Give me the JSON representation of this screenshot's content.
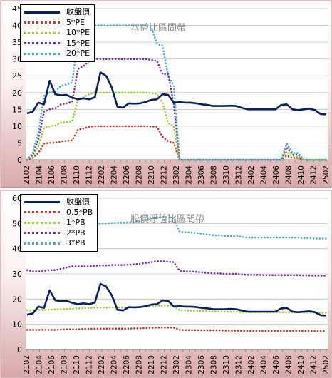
{
  "chart_data": [
    {
      "type": "line",
      "title": "本益比區間帶",
      "ylim": [
        0,
        45
      ],
      "yticks": [
        0,
        5,
        10,
        15,
        20,
        25,
        30,
        35,
        40,
        45
      ],
      "xtick_labels": [
        "2102",
        "2104",
        "2106",
        "2108",
        "2110",
        "2112",
        "2202",
        "2204",
        "2206",
        "2208",
        "2210",
        "2212",
        "2302",
        "2304",
        "2306",
        "2308",
        "2310",
        "2312",
        "2402",
        "2404",
        "2406",
        "2408",
        "2410",
        "2412",
        "2502"
      ],
      "grid": true,
      "legend_position": "top-left",
      "series": [
        {
          "name": "收盤價",
          "color": "#0a1f5c",
          "style": "solid",
          "values": [
            13.8,
            14.3,
            17.0,
            16.5,
            23.5,
            19.5,
            19.2,
            19.3,
            18.5,
            18.0,
            18.3,
            18.0,
            18.6,
            26.0,
            25.0,
            21.5,
            15.8,
            15.5,
            16.8,
            16.7,
            16.8,
            17.2,
            17.8,
            18.0,
            19.5,
            19.3,
            17.0,
            17.2,
            17.0,
            17.0,
            16.8,
            16.5,
            16.3,
            16.0,
            16.0,
            16.0,
            16.1,
            16.0,
            15.5,
            15.0,
            15.0,
            15.0,
            15.0,
            15.0,
            15.0,
            16.3,
            16.5,
            15.0,
            14.8,
            15.0,
            15.2,
            14.8,
            13.6,
            13.5
          ]
        },
        {
          "name": "5*PE",
          "color": "#c0392b",
          "style": "dotted",
          "values": [
            0,
            0.5,
            2,
            4.8,
            5.0,
            5.1,
            5.5,
            5.6,
            5.8,
            9.0,
            9.3,
            9.8,
            10.0,
            10.0,
            10.0,
            10.0,
            10.0,
            10.0,
            10.0,
            10.0,
            10.0,
            10.0,
            9.9,
            9.8,
            6.8,
            5.5,
            5.0,
            0,
            0,
            0,
            0,
            0,
            0,
            0,
            0,
            0,
            0,
            0,
            0,
            0,
            0,
            0,
            0,
            0,
            0,
            0,
            1.2,
            0.5,
            0.5,
            0,
            0,
            0,
            0,
            0
          ]
        },
        {
          "name": "10*PE",
          "color": "#9acd32",
          "style": "dotted",
          "values": [
            0,
            1,
            4,
            9.5,
            10,
            10.2,
            11,
            11.2,
            11.5,
            18,
            18.6,
            19.6,
            20,
            20,
            20,
            20,
            20,
            20,
            20,
            20,
            20,
            20,
            19.8,
            19.6,
            17,
            11,
            10,
            0,
            0,
            0,
            0,
            0,
            0,
            0,
            0,
            0,
            0,
            0,
            0,
            0,
            0,
            0,
            0,
            0,
            0,
            0,
            2.4,
            1.0,
            1.0,
            0,
            0,
            0,
            0,
            0
          ]
        },
        {
          "name": "15*PE",
          "color": "#7030a0",
          "style": "dotted",
          "values": [
            0,
            1.5,
            6,
            14.3,
            15,
            15.3,
            16.5,
            16.8,
            17.3,
            27,
            27.9,
            29.4,
            30,
            30,
            30,
            30,
            30,
            30,
            30,
            30,
            30,
            30,
            29.7,
            29.4,
            25.5,
            25.5,
            16.5,
            0,
            0,
            0,
            0,
            0,
            0,
            0,
            0,
            0,
            0,
            0,
            0,
            0,
            0,
            0,
            0,
            0,
            0,
            0,
            3.6,
            1.5,
            1.5,
            0,
            0,
            0,
            0,
            0
          ]
        },
        {
          "name": "20*PE",
          "color": "#4bacc6",
          "style": "dotted",
          "values": [
            0,
            2,
            8,
            19,
            20,
            20.4,
            22,
            22.4,
            23,
            36,
            37.2,
            39.2,
            40,
            40,
            40,
            40,
            40,
            40,
            40,
            40,
            40,
            40,
            39.6,
            34.5,
            34.0,
            25,
            22,
            0,
            0,
            0,
            0,
            0,
            0,
            0,
            0,
            0,
            0,
            0,
            0,
            0,
            0,
            0,
            0,
            0,
            0,
            0,
            4.8,
            2.0,
            2.0,
            0,
            0,
            0,
            0,
            0
          ]
        }
      ]
    },
    {
      "type": "line",
      "title": "股價淨值比區間帶",
      "ylim": [
        0,
        60
      ],
      "yticks": [
        0,
        10,
        20,
        30,
        40,
        50,
        60
      ],
      "xtick_labels": [
        "2102",
        "2104",
        "2106",
        "2108",
        "2110",
        "2112",
        "2202",
        "2204",
        "2206",
        "2208",
        "2210",
        "2212",
        "2302",
        "2304",
        "2306",
        "2308",
        "2310",
        "2312",
        "2402",
        "2404",
        "2406",
        "2408",
        "2410",
        "2412",
        "2502"
      ],
      "grid": true,
      "legend_position": "top-left",
      "series": [
        {
          "name": "收盤價",
          "color": "#0a1f5c",
          "style": "solid",
          "values": [
            13.8,
            14.3,
            17.0,
            16.5,
            23.5,
            19.5,
            19.2,
            19.3,
            18.5,
            18.0,
            18.3,
            18.0,
            18.6,
            26.0,
            25.0,
            21.5,
            15.8,
            15.5,
            16.8,
            16.7,
            16.8,
            17.2,
            17.8,
            18.0,
            19.5,
            19.3,
            17.0,
            17.2,
            17.0,
            17.0,
            16.8,
            16.5,
            16.3,
            16.0,
            16.0,
            16.0,
            16.1,
            16.0,
            15.5,
            15.0,
            15.0,
            15.0,
            15.0,
            15.0,
            15.0,
            16.3,
            16.5,
            15.0,
            14.8,
            15.0,
            15.2,
            14.8,
            13.6,
            13.5
          ]
        },
        {
          "name": "0.5*PB",
          "color": "#c0392b",
          "style": "dotted",
          "values": [
            7.8,
            7.8,
            7.8,
            7.8,
            7.8,
            7.8,
            7.9,
            8.0,
            8.0,
            8.0,
            8.2,
            8.2,
            8.2,
            8.3,
            8.3,
            8.3,
            8.3,
            8.3,
            8.3,
            8.4,
            8.4,
            8.5,
            8.6,
            8.7,
            8.7,
            8.7,
            8.7,
            7.8,
            7.7,
            7.7,
            7.7,
            7.6,
            7.6,
            7.6,
            7.6,
            7.5,
            7.5,
            7.5,
            7.4,
            7.4,
            7.4,
            7.4,
            7.4,
            7.4,
            7.4,
            7.4,
            7.4,
            7.4,
            7.4,
            7.4,
            7.4,
            7.3,
            7.3,
            7.3
          ]
        },
        {
          "name": "1*PB",
          "color": "#9acd32",
          "style": "dotted",
          "values": [
            15.6,
            15.6,
            15.7,
            15.7,
            15.8,
            15.9,
            16.0,
            16.1,
            16.2,
            16.3,
            16.4,
            16.5,
            16.6,
            16.6,
            16.6,
            16.7,
            16.7,
            16.7,
            16.7,
            16.8,
            16.8,
            17.0,
            17.2,
            17.4,
            17.4,
            17.4,
            17.3,
            15.6,
            15.5,
            15.4,
            15.3,
            15.2,
            15.2,
            15.1,
            15.1,
            15.0,
            15.0,
            15.0,
            14.9,
            14.8,
            14.8,
            14.8,
            14.8,
            14.8,
            14.8,
            14.8,
            14.8,
            14.8,
            14.8,
            14.7,
            14.7,
            14.6,
            14.6,
            14.6
          ]
        },
        {
          "name": "2*PB",
          "color": "#7030a0",
          "style": "dotted",
          "values": [
            31.5,
            31.0,
            31.0,
            31.2,
            31.5,
            31.5,
            32.0,
            32.5,
            33.0,
            33.0,
            33.0,
            33.0,
            33.2,
            33.3,
            33.3,
            33.5,
            33.5,
            33.5,
            33.6,
            33.8,
            34.0,
            34.3,
            34.6,
            35.0,
            35.0,
            34.8,
            34.6,
            31.2,
            31.0,
            31.0,
            30.8,
            30.6,
            30.4,
            30.2,
            30.2,
            30.0,
            30.0,
            30.0,
            29.8,
            29.6,
            29.6,
            29.6,
            29.5,
            29.5,
            29.5,
            29.5,
            29.5,
            29.5,
            29.5,
            29.4,
            29.4,
            29.3,
            29.3,
            29.3
          ]
        },
        {
          "name": "3*PB",
          "color": "#4bacc6",
          "style": "dotted",
          "values": [
            47,
            46.5,
            46.5,
            46.8,
            47.2,
            47.5,
            48.0,
            48.5,
            49.3,
            49.5,
            49.5,
            49.5,
            49.8,
            50.0,
            50.0,
            50.2,
            50.3,
            50.3,
            50.4,
            50.7,
            51.0,
            51.5,
            52.0,
            52.5,
            52.5,
            52.3,
            52.0,
            46.8,
            46.5,
            46.4,
            46.2,
            45.9,
            45.6,
            45.3,
            45.3,
            45.0,
            45.0,
            45.0,
            44.7,
            44.4,
            44.4,
            44.4,
            44.4,
            44.4,
            44.4,
            44.4,
            44.4,
            44.4,
            44.4,
            44.2,
            44.2,
            44.0,
            44.0,
            44.0
          ]
        }
      ]
    }
  ]
}
